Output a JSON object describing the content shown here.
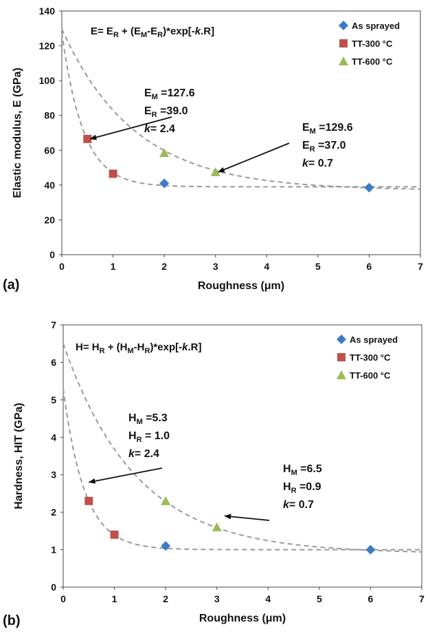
{
  "chart_data": [
    {
      "panel": "(a)",
      "type": "scatter",
      "xlabel": "Roughness (μm)",
      "ylabel": "Elastic modulus, E (GPa)",
      "xlim": [
        0,
        7
      ],
      "ylim": [
        0,
        140
      ],
      "xticks": [
        0,
        1,
        2,
        3,
        4,
        5,
        6,
        7
      ],
      "yticks": [
        0,
        20,
        40,
        60,
        80,
        100,
        120,
        140
      ],
      "equation": {
        "lhs": "E",
        "sub": "R",
        "subM": "M",
        "tail": ")*exp[-",
        "k": "k",
        "end": ".R]"
      },
      "legend_position": "top-right",
      "series": [
        {
          "name": "As sprayed",
          "marker": "diamond",
          "color": "#3b7cc4",
          "points": [
            [
              2,
              41
            ],
            [
              6,
              38.5
            ]
          ]
        },
        {
          "name": "TT-300 °C",
          "marker": "square",
          "color": "#c0504d",
          "points": [
            [
              0.5,
              66.5
            ],
            [
              1,
              46.5
            ]
          ]
        },
        {
          "name": "TT-600 °C",
          "marker": "triangle",
          "color": "#9bbb59",
          "points": [
            [
              2,
              58.5
            ],
            [
              3,
              47.5
            ]
          ]
        }
      ],
      "fits": [
        {
          "M": 127.6,
          "R": 39.0,
          "k": 2.4
        },
        {
          "M": 129.6,
          "R": 37.0,
          "k": 0.7
        }
      ],
      "annotations": [
        {
          "M_label": "=127.6",
          "R_label": "=39.0",
          "k_label": "= 2.4",
          "arrow_to": [
            0.5,
            66.5
          ]
        },
        {
          "M_label": "=129.6",
          "R_label": "=37.0",
          "k_label": "= 0.7",
          "arrow_to": [
            3,
            47.5
          ]
        }
      ]
    },
    {
      "panel": "(b)",
      "type": "scatter",
      "xlabel": "Roughness (μm)",
      "ylabel": "Hardness, HIT (GPa)",
      "xlim": [
        0,
        7
      ],
      "ylim": [
        0,
        7
      ],
      "xticks": [
        0,
        1,
        2,
        3,
        4,
        5,
        6,
        7
      ],
      "yticks": [
        0,
        1,
        2,
        3,
        4,
        5,
        6,
        7
      ],
      "equation": {
        "lhs": "H",
        "sub": "R",
        "subM": "M",
        "tail": ")*exp[-",
        "k": "k",
        "end": ".R]"
      },
      "legend_position": "top-right",
      "series": [
        {
          "name": "As sprayed",
          "marker": "diamond",
          "color": "#3b7cc4",
          "points": [
            [
              2,
              1.1
            ],
            [
              6,
              1.0
            ]
          ]
        },
        {
          "name": "TT-300 °C",
          "marker": "square",
          "color": "#c0504d",
          "points": [
            [
              0.5,
              2.3
            ],
            [
              1,
              1.4
            ]
          ]
        },
        {
          "name": "TT-600 °C",
          "marker": "triangle",
          "color": "#9bbb59",
          "points": [
            [
              2,
              2.3
            ],
            [
              3,
              1.6
            ]
          ]
        }
      ],
      "fits": [
        {
          "M": 5.3,
          "R": 1.0,
          "k": 2.4
        },
        {
          "M": 6.5,
          "R": 0.9,
          "k": 0.7
        }
      ],
      "annotations": [
        {
          "M_label": "=5.3",
          "R_label": "= 1.0",
          "k_label": "= 2.4",
          "arrow_to": [
            0.45,
            2.8
          ]
        },
        {
          "M_label": "=6.5",
          "R_label": "=0.9",
          "k_label": "= 0.7",
          "arrow_to": [
            3.1,
            1.9
          ]
        }
      ]
    }
  ]
}
